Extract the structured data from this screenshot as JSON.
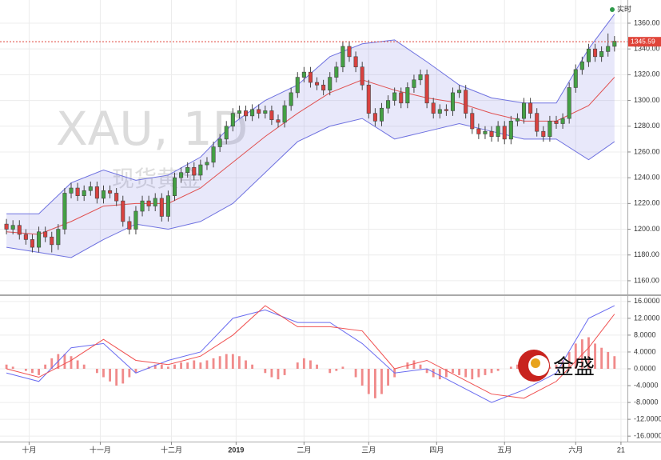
{
  "chart_data": {
    "type": "candlestick",
    "watermark": "XAU, 1D",
    "watermark_sub": "现货黄金",
    "status": "实时",
    "logo": "金盛",
    "last_price": 1345.59,
    "last_price_color": "#e0453a",
    "up_color": "#44a044",
    "down_color": "#d9413f",
    "band_color": "#6f72e0",
    "xlim": [
      -1,
      96
    ],
    "xticks": [
      {
        "value": 3.5,
        "label": "十月"
      },
      {
        "value": 14.5,
        "label": "十一月"
      },
      {
        "value": 25.5,
        "label": "十二月"
      },
      {
        "value": 35.5,
        "label": "2019"
      },
      {
        "value": 46,
        "label": "二月"
      },
      {
        "value": 56,
        "label": "三月"
      },
      {
        "value": 66.5,
        "label": "四月"
      },
      {
        "value": 77,
        "label": "五月"
      },
      {
        "value": 88,
        "label": "六月"
      },
      {
        "value": 95,
        "label": "21"
      }
    ],
    "ylim": [
      1149.4,
      1378
    ],
    "yticks": [
      {
        "value": 1160,
        "label": "1160.00"
      },
      {
        "value": 1180,
        "label": "1180.00"
      },
      {
        "value": 1200,
        "label": "1200.00"
      },
      {
        "value": 1220,
        "label": "1220.00"
      },
      {
        "value": 1240,
        "label": "1240.00"
      },
      {
        "value": 1260,
        "label": "1260.00"
      },
      {
        "value": 1280,
        "label": "1280.00"
      },
      {
        "value": 1300,
        "label": "1300.00"
      },
      {
        "value": 1320,
        "label": "1320.00"
      },
      {
        "value": 1340,
        "label": "1340.00"
      },
      {
        "value": 1360,
        "label": "1360.00"
      }
    ],
    "grid": true,
    "ohlc": [
      [
        1204,
        1208,
        1196,
        1200
      ],
      [
        1200,
        1207,
        1196,
        1203
      ],
      [
        1203,
        1207,
        1192,
        1196
      ],
      [
        1196,
        1200,
        1188,
        1192
      ],
      [
        1192,
        1196,
        1182,
        1186
      ],
      [
        1186,
        1202,
        1182,
        1198
      ],
      [
        1198,
        1202,
        1190,
        1194
      ],
      [
        1194,
        1198,
        1182,
        1188
      ],
      [
        1188,
        1204,
        1184,
        1200
      ],
      [
        1200,
        1232,
        1196,
        1228
      ],
      [
        1228,
        1236,
        1224,
        1232
      ],
      [
        1232,
        1236,
        1222,
        1226
      ],
      [
        1226,
        1234,
        1222,
        1230
      ],
      [
        1230,
        1237,
        1226,
        1233
      ],
      [
        1233,
        1237,
        1220,
        1224
      ],
      [
        1224,
        1234,
        1220,
        1230
      ],
      [
        1230,
        1234,
        1224,
        1228
      ],
      [
        1228,
        1232,
        1218,
        1222
      ],
      [
        1222,
        1226,
        1202,
        1206
      ],
      [
        1206,
        1210,
        1196,
        1200
      ],
      [
        1200,
        1218,
        1196,
        1214
      ],
      [
        1214,
        1226,
        1210,
        1222
      ],
      [
        1222,
        1226,
        1214,
        1218
      ],
      [
        1218,
        1228,
        1214,
        1224
      ],
      [
        1224,
        1228,
        1206,
        1210
      ],
      [
        1210,
        1230,
        1206,
        1226
      ],
      [
        1226,
        1244,
        1222,
        1240
      ],
      [
        1240,
        1248,
        1236,
        1244
      ],
      [
        1244,
        1252,
        1240,
        1248
      ],
      [
        1248,
        1252,
        1238,
        1242
      ],
      [
        1242,
        1254,
        1238,
        1250
      ],
      [
        1250,
        1256,
        1246,
        1252
      ],
      [
        1252,
        1268,
        1248,
        1264
      ],
      [
        1264,
        1274,
        1260,
        1270
      ],
      [
        1270,
        1284,
        1266,
        1280
      ],
      [
        1280,
        1294,
        1276,
        1290
      ],
      [
        1290,
        1296,
        1286,
        1292
      ],
      [
        1292,
        1296,
        1284,
        1288
      ],
      [
        1288,
        1297,
        1284,
        1293
      ],
      [
        1293,
        1297,
        1286,
        1290
      ],
      [
        1290,
        1296,
        1286,
        1292
      ],
      [
        1292,
        1296,
        1281,
        1285
      ],
      [
        1285,
        1289,
        1279,
        1283
      ],
      [
        1283,
        1300,
        1279,
        1296
      ],
      [
        1296,
        1310,
        1292,
        1306
      ],
      [
        1306,
        1322,
        1302,
        1318
      ],
      [
        1318,
        1326,
        1314,
        1322
      ],
      [
        1322,
        1326,
        1310,
        1314
      ],
      [
        1314,
        1318,
        1308,
        1312
      ],
      [
        1312,
        1316,
        1304,
        1308
      ],
      [
        1308,
        1322,
        1304,
        1318
      ],
      [
        1318,
        1330,
        1314,
        1326
      ],
      [
        1326,
        1346,
        1322,
        1342
      ],
      [
        1342,
        1346,
        1330,
        1334
      ],
      [
        1334,
        1338,
        1322,
        1326
      ],
      [
        1326,
        1330,
        1308,
        1312
      ],
      [
        1312,
        1316,
        1286,
        1290
      ],
      [
        1290,
        1294,
        1280,
        1284
      ],
      [
        1284,
        1298,
        1280,
        1294
      ],
      [
        1294,
        1304,
        1290,
        1300
      ],
      [
        1300,
        1310,
        1296,
        1306
      ],
      [
        1306,
        1310,
        1294,
        1298
      ],
      [
        1298,
        1314,
        1294,
        1310
      ],
      [
        1310,
        1320,
        1306,
        1316
      ],
      [
        1316,
        1324,
        1312,
        1320
      ],
      [
        1320,
        1324,
        1294,
        1298
      ],
      [
        1298,
        1302,
        1286,
        1290
      ],
      [
        1290,
        1297,
        1286,
        1293
      ],
      [
        1293,
        1297,
        1288,
        1292
      ],
      [
        1292,
        1310,
        1288,
        1306
      ],
      [
        1306,
        1312,
        1302,
        1308
      ],
      [
        1308,
        1312,
        1286,
        1290
      ],
      [
        1290,
        1294,
        1274,
        1278
      ],
      [
        1278,
        1282,
        1270,
        1274
      ],
      [
        1274,
        1280,
        1270,
        1276
      ],
      [
        1276,
        1280,
        1268,
        1272
      ],
      [
        1272,
        1284,
        1268,
        1280
      ],
      [
        1280,
        1284,
        1266,
        1270
      ],
      [
        1270,
        1288,
        1266,
        1284
      ],
      [
        1284,
        1290,
        1280,
        1286
      ],
      [
        1286,
        1302,
        1282,
        1298
      ],
      [
        1298,
        1302,
        1286,
        1290
      ],
      [
        1290,
        1294,
        1272,
        1276
      ],
      [
        1276,
        1280,
        1268,
        1272
      ],
      [
        1272,
        1288,
        1268,
        1284
      ],
      [
        1284,
        1288,
        1278,
        1282
      ],
      [
        1282,
        1290,
        1278,
        1286
      ],
      [
        1286,
        1314,
        1282,
        1310
      ],
      [
        1310,
        1328,
        1306,
        1324
      ],
      [
        1324,
        1334,
        1320,
        1330
      ],
      [
        1330,
        1344,
        1326,
        1340
      ],
      [
        1340,
        1344,
        1330,
        1334
      ],
      [
        1334,
        1342,
        1330,
        1338
      ],
      [
        1338,
        1352,
        1334,
        1342
      ],
      [
        1342,
        1350,
        1338,
        1346
      ]
    ],
    "indicator_x": [
      0,
      5,
      10,
      15,
      20,
      25,
      30,
      35,
      40,
      45,
      50,
      55,
      60,
      65,
      70,
      75,
      80,
      85,
      90,
      94
    ],
    "bands": [
      {
        "color": "#6f72e0",
        "values": [
          1212,
          1212,
          1236,
          1246,
          1238,
          1242,
          1256,
          1282,
          1300,
          1312,
          1334,
          1344,
          1347,
          1330,
          1312,
          1302,
          1298,
          1298,
          1340,
          1367
        ]
      },
      {
        "color": "#e05050",
        "values": [
          1198,
          1196,
          1206,
          1218,
          1220,
          1220,
          1232,
          1252,
          1272,
          1290,
          1306,
          1316,
          1308,
          1302,
          1298,
          1290,
          1284,
          1284,
          1296,
          1318
        ]
      },
      {
        "color": "#6f72e0",
        "values": [
          1186,
          1182,
          1178,
          1192,
          1204,
          1200,
          1206,
          1220,
          1244,
          1268,
          1280,
          1286,
          1270,
          1276,
          1282,
          1276,
          1270,
          1270,
          1254,
          1268
        ]
      }
    ],
    "macd": {
      "ylim": [
        -17.3,
        17.3
      ],
      "yticks": [
        {
          "value": 16,
          "label": "16.0000"
        },
        {
          "value": 12,
          "label": "12.0000"
        },
        {
          "value": 8,
          "label": "8.0000"
        },
        {
          "value": 4,
          "label": "4.0000"
        },
        {
          "value": 0,
          "label": "0.0000"
        },
        {
          "value": -4,
          "label": "-4.0000"
        },
        {
          "value": -8,
          "label": "-8.0000"
        },
        {
          "value": -12,
          "label": "-12.0000"
        },
        {
          "value": -16,
          "label": "-16.0000"
        }
      ],
      "series": [
        {
          "color": "#6a6cf0",
          "values": [
            -1,
            -3,
            5,
            6,
            -1,
            2,
            4,
            12,
            14,
            11,
            11,
            6,
            -1,
            0,
            -4,
            -8,
            -5,
            -1,
            12,
            15
          ]
        },
        {
          "color": "#f05050",
          "values": [
            0,
            -2,
            2,
            7,
            2,
            1,
            3,
            8,
            15,
            10,
            10,
            9,
            0,
            2,
            -2,
            -6,
            -7,
            -3,
            5,
            13
          ]
        }
      ],
      "histogram_color": "#f08a8a",
      "histogram": [
        1,
        0.5,
        0,
        -0.5,
        -1,
        -1.5,
        1,
        2.5,
        3.5,
        3.5,
        3,
        2,
        1,
        0,
        -1,
        -2,
        -3,
        -4,
        -3.5,
        -2,
        -1,
        0,
        0.5,
        1,
        1,
        0.5,
        1,
        1.5,
        1.5,
        2,
        1.5,
        2,
        2.5,
        3,
        3.5,
        3.5,
        3,
        2,
        1,
        0,
        -1,
        -2,
        -2.5,
        -1.5,
        0,
        1.5,
        2.5,
        2,
        1,
        0,
        -1,
        -0.5,
        0.5,
        0,
        -2,
        -4,
        -6,
        -7,
        -6,
        -4,
        -2,
        0,
        1.5,
        2,
        1,
        -1,
        -2,
        -2.5,
        -2,
        -1,
        -1.5,
        -2,
        -2.5,
        -2,
        -1.5,
        -1,
        -0.5,
        0,
        0.5,
        1,
        1.5,
        1,
        0.5,
        0,
        0.5,
        1,
        2,
        4,
        6,
        7,
        7.5,
        6,
        5,
        4,
        3
      ]
    }
  }
}
